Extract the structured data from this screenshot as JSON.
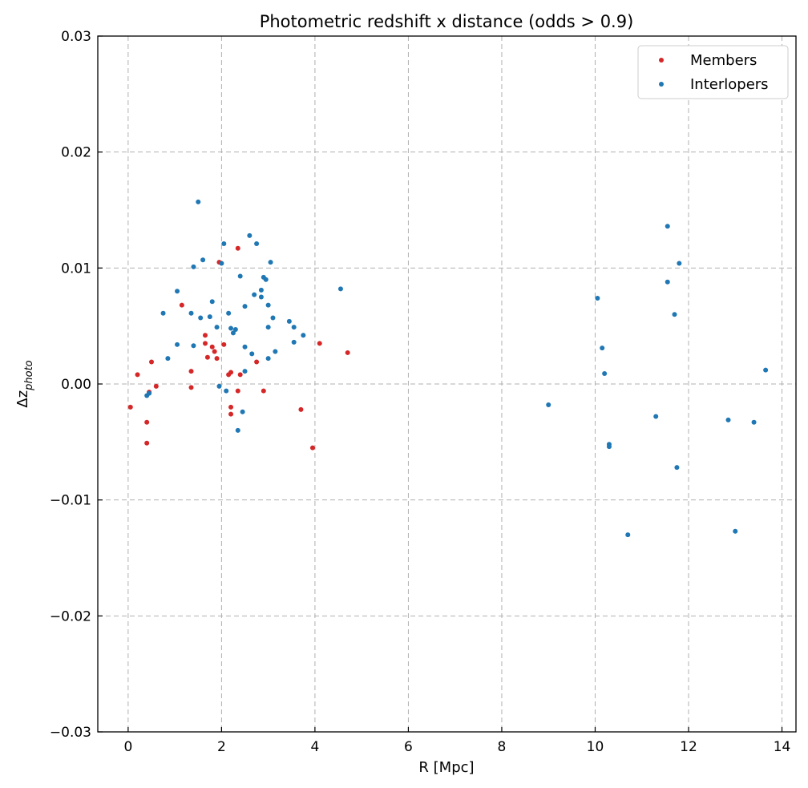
{
  "chart_data": {
    "type": "scatter",
    "title": "Photometric redshift x distance (odds > 0.9)",
    "xlabel": "R [Mpc]",
    "ylabel_base": "Δz",
    "ylabel_sub": "photo",
    "xlim": [
      -0.65,
      14.3
    ],
    "ylim": [
      -0.03,
      0.03
    ],
    "xticks": [
      0,
      2,
      4,
      6,
      8,
      10,
      12,
      14
    ],
    "xtick_labels": [
      "0",
      "2",
      "4",
      "6",
      "8",
      "10",
      "12",
      "14"
    ],
    "yticks": [
      -0.03,
      -0.02,
      -0.01,
      0.0,
      0.01,
      0.02,
      0.03
    ],
    "ytick_labels": [
      "−0.03",
      "−0.02",
      "−0.01",
      "0.00",
      "0.01",
      "0.02",
      "0.03"
    ],
    "grid": true,
    "legend_position": "top-right",
    "series": [
      {
        "name": "Members",
        "color": "#d62728",
        "points": [
          [
            0.05,
            -0.002
          ],
          [
            0.2,
            0.0008
          ],
          [
            0.4,
            -0.0033
          ],
          [
            0.4,
            -0.0051
          ],
          [
            0.45,
            -0.0007
          ],
          [
            0.5,
            0.0019
          ],
          [
            0.6,
            -0.0002
          ],
          [
            1.15,
            0.0068
          ],
          [
            1.35,
            0.0011
          ],
          [
            1.35,
            -0.0003
          ],
          [
            1.65,
            0.0042
          ],
          [
            1.65,
            0.0035
          ],
          [
            1.7,
            0.0023
          ],
          [
            1.8,
            0.0032
          ],
          [
            1.85,
            0.0028
          ],
          [
            1.9,
            0.0022
          ],
          [
            1.95,
            0.0105
          ],
          [
            2.05,
            0.0034
          ],
          [
            2.15,
            0.0008
          ],
          [
            2.2,
            0.001
          ],
          [
            2.2,
            -0.002
          ],
          [
            2.2,
            -0.0026
          ],
          [
            2.35,
            0.0117
          ],
          [
            2.35,
            -0.0006
          ],
          [
            2.4,
            0.0008
          ],
          [
            2.75,
            0.0019
          ],
          [
            2.9,
            -0.0006
          ],
          [
            3.7,
            -0.0022
          ],
          [
            3.95,
            -0.0055
          ],
          [
            4.1,
            0.0035
          ],
          [
            4.7,
            0.0027
          ]
        ]
      },
      {
        "name": "Interlopers",
        "color": "#1f77b4",
        "points": [
          [
            0.4,
            -0.001
          ],
          [
            0.45,
            -0.0008
          ],
          [
            0.75,
            0.0061
          ],
          [
            0.85,
            0.0022
          ],
          [
            1.05,
            0.008
          ],
          [
            1.05,
            0.0034
          ],
          [
            1.35,
            0.0061
          ],
          [
            1.4,
            0.0101
          ],
          [
            1.4,
            0.0033
          ],
          [
            1.5,
            0.0157
          ],
          [
            1.55,
            0.0057
          ],
          [
            1.6,
            0.0107
          ],
          [
            1.75,
            0.0058
          ],
          [
            1.8,
            0.0071
          ],
          [
            1.9,
            0.0049
          ],
          [
            1.95,
            -0.0002
          ],
          [
            2.0,
            0.0104
          ],
          [
            2.05,
            0.0121
          ],
          [
            2.1,
            -0.0006
          ],
          [
            2.15,
            0.0061
          ],
          [
            2.2,
            0.0048
          ],
          [
            2.25,
            0.0044
          ],
          [
            2.3,
            0.0047
          ],
          [
            2.35,
            -0.004
          ],
          [
            2.4,
            0.0093
          ],
          [
            2.45,
            -0.0024
          ],
          [
            2.5,
            0.0067
          ],
          [
            2.5,
            0.0032
          ],
          [
            2.5,
            0.0011
          ],
          [
            2.6,
            0.0128
          ],
          [
            2.65,
            0.0026
          ],
          [
            2.7,
            0.0077
          ],
          [
            2.75,
            0.0121
          ],
          [
            2.85,
            0.0081
          ],
          [
            2.85,
            0.0075
          ],
          [
            2.9,
            0.0092
          ],
          [
            2.95,
            0.009
          ],
          [
            3.0,
            0.0068
          ],
          [
            3.0,
            0.0049
          ],
          [
            3.0,
            0.0022
          ],
          [
            3.05,
            0.0105
          ],
          [
            3.1,
            0.0057
          ],
          [
            3.15,
            0.0028
          ],
          [
            3.45,
            0.0054
          ],
          [
            3.55,
            0.0049
          ],
          [
            3.55,
            0.0036
          ],
          [
            3.75,
            0.0042
          ],
          [
            4.55,
            0.0082
          ],
          [
            9.0,
            -0.0018
          ],
          [
            10.05,
            0.0074
          ],
          [
            10.15,
            0.0031
          ],
          [
            10.2,
            0.0009
          ],
          [
            10.3,
            -0.0052
          ],
          [
            10.3,
            -0.0054
          ],
          [
            10.7,
            -0.013
          ],
          [
            11.3,
            -0.0028
          ],
          [
            11.55,
            0.0136
          ],
          [
            11.55,
            0.0088
          ],
          [
            11.7,
            0.006
          ],
          [
            11.75,
            -0.0072
          ],
          [
            11.8,
            0.0104
          ],
          [
            12.85,
            -0.0031
          ],
          [
            13.0,
            -0.0127
          ],
          [
            13.4,
            -0.0033
          ],
          [
            13.65,
            0.0012
          ]
        ]
      }
    ]
  }
}
